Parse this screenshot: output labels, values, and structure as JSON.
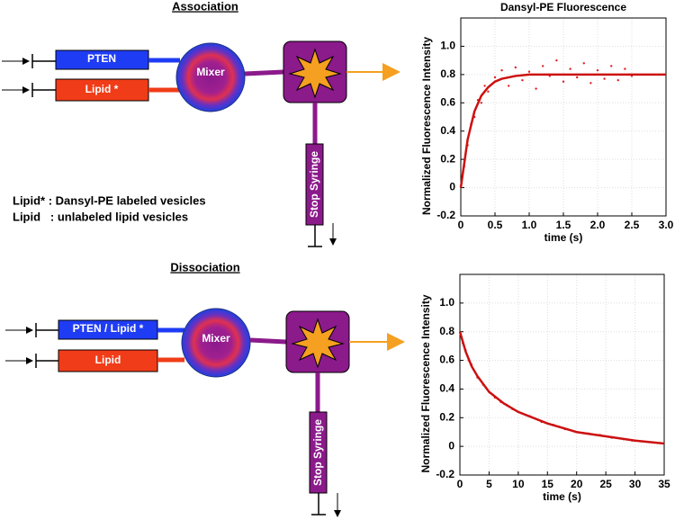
{
  "diagram": {
    "association": {
      "title": "Association",
      "syringe_1": "PTEN",
      "syringe_2": "Lipid *",
      "mixer": "Mixer",
      "stop": "Stop Syringe"
    },
    "legend": [
      "Lipid* : Dansyl-PE labeled vesicles",
      "Lipid   : unlabeled lipid vesicles"
    ],
    "dissociation": {
      "title": "Dissociation",
      "syringe_1": "PTEN / Lipid *",
      "syringe_2": "Lipid",
      "mixer": "Mixer",
      "stop": "Stop Syringe"
    }
  },
  "chart_data": [
    {
      "type": "scatter",
      "title": "Dansyl-PE Fluorescence",
      "x_label": "time (s)",
      "y_label": "Normalized Fluorescence Intensity",
      "xlim": [
        0,
        3
      ],
      "ylim": [
        -0.2,
        1.2
      ],
      "xticks": [
        0,
        0.5,
        {
          "value": 1,
          "label": "1.0"
        },
        1.5,
        {
          "value": 2,
          "label": "2.0"
        },
        2.5,
        {
          "value": 3,
          "label": "3.0"
        }
      ],
      "yticks": [
        -0.2,
        0,
        0.2,
        0.4,
        0.6,
        0.8,
        {
          "value": 1,
          "label": "1.0"
        }
      ],
      "grid": true,
      "series": [
        {
          "kind": "scatter",
          "color": "#e02020",
          "x": [
            0.05,
            0.1,
            0.15,
            0.2,
            0.25,
            0.3,
            0.35,
            0.4,
            0.5,
            0.6,
            0.7,
            0.8,
            0.9,
            1.0,
            1.1,
            1.2,
            1.3,
            1.4,
            1.5,
            1.6,
            1.7,
            1.8,
            1.9,
            2.0,
            2.1,
            2.2,
            2.3,
            2.4,
            2.5
          ],
          "values": [
            0.15,
            0.3,
            0.45,
            0.5,
            0.62,
            0.6,
            0.72,
            0.68,
            0.78,
            0.83,
            0.72,
            0.85,
            0.76,
            0.82,
            0.7,
            0.86,
            0.79,
            0.9,
            0.75,
            0.84,
            0.78,
            0.88,
            0.74,
            0.83,
            0.77,
            0.86,
            0.76,
            0.84,
            0.79
          ]
        },
        {
          "kind": "line",
          "color": "#cc1010",
          "x": [
            0,
            0.1,
            0.2,
            0.3,
            0.4,
            0.5,
            0.6,
            0.8,
            1.0,
            1.5,
            2,
            3
          ],
          "values": [
            0,
            0.34,
            0.54,
            0.65,
            0.71,
            0.75,
            0.77,
            0.79,
            0.8,
            0.8,
            0.8,
            0.8
          ]
        }
      ]
    },
    {
      "type": "scatter",
      "x_label": "time (s)",
      "y_label": "Normalized Fluorescence Intensity",
      "xlim": [
        0,
        35
      ],
      "ylim": [
        -0.2,
        1.2
      ],
      "xticks": [
        0,
        5,
        10,
        15,
        20,
        25,
        30,
        35
      ],
      "yticks": [
        -0.2,
        0,
        0.2,
        0.4,
        0.6,
        0.8,
        {
          "value": 1,
          "label": "1.0"
        }
      ],
      "grid": true,
      "series": [
        {
          "kind": "scatter",
          "color": "#e02020",
          "x": [
            0.5,
            1,
            1.5,
            2,
            3,
            4,
            5,
            6,
            7,
            8,
            9,
            10,
            12,
            14,
            16,
            18,
            20,
            22,
            24,
            26,
            28,
            29.5
          ],
          "values": [
            0.72,
            0.67,
            0.6,
            0.57,
            0.48,
            0.43,
            0.38,
            0.34,
            0.31,
            0.29,
            0.26,
            0.24,
            0.21,
            0.17,
            0.15,
            0.12,
            0.1,
            0.09,
            0.08,
            0.06,
            0.05,
            0.04
          ]
        },
        {
          "kind": "line",
          "color": "#cc1010",
          "x": [
            0,
            1,
            2,
            3,
            5,
            7.5,
            10,
            15,
            20,
            25,
            30,
            35
          ],
          "values": [
            0.8,
            0.66,
            0.56,
            0.49,
            0.38,
            0.3,
            0.24,
            0.16,
            0.1,
            0.07,
            0.04,
            0.02
          ]
        }
      ]
    }
  ]
}
